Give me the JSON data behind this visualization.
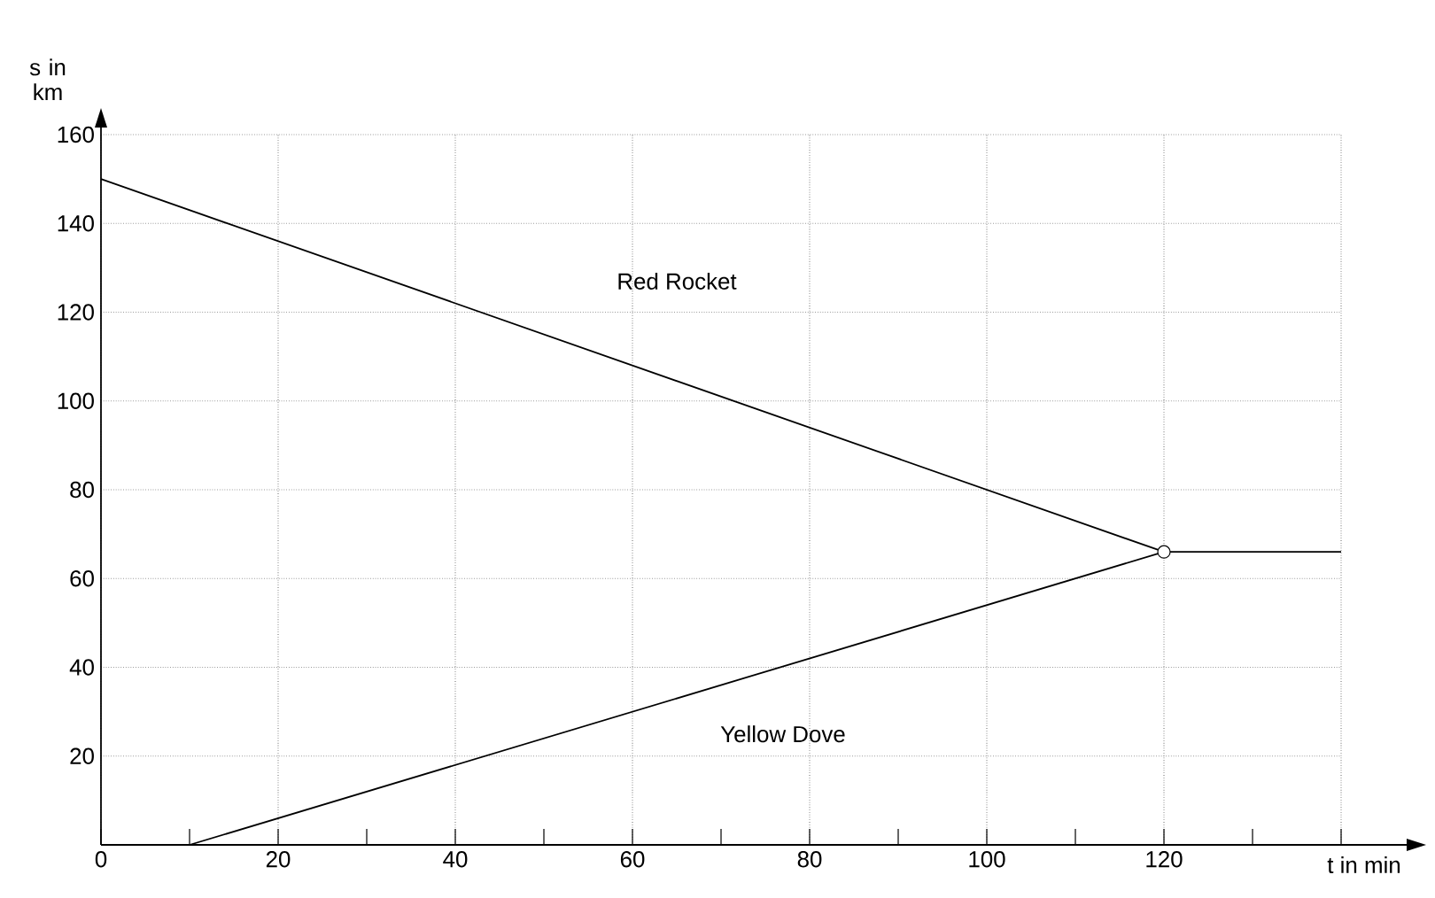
{
  "chart_data": {
    "type": "line",
    "xlabel": "t in min",
    "ylabel": "s in km",
    "xlim": [
      0,
      140
    ],
    "ylim": [
      0,
      160
    ],
    "xticks": [
      0,
      {
        "value": 10,
        "label": null
      },
      20,
      {
        "value": 30,
        "label": null
      },
      40,
      {
        "value": 50,
        "label": null
      },
      60,
      {
        "value": 70,
        "label": null
      },
      80,
      {
        "value": 90,
        "label": null
      },
      100,
      {
        "value": 110,
        "label": null
      },
      120,
      {
        "value": 130,
        "label": null
      },
      {
        "value": 140,
        "label": null
      }
    ],
    "yticks": [
      20,
      40,
      60,
      80,
      100,
      120,
      140,
      160
    ],
    "grid": true,
    "legend": false,
    "series": [
      {
        "name": "Red Rocket",
        "color": "#000000",
        "x": [
          0,
          120,
          140
        ],
        "values": [
          150,
          66,
          66
        ]
      },
      {
        "name": "Yellow Dove",
        "color": "#000000",
        "x": [
          10,
          120
        ],
        "values": [
          0,
          66
        ]
      },
      {
        "type": "scatter",
        "marker": "circle",
        "color": "#000000",
        "x": [
          120
        ],
        "values": [
          66
        ]
      }
    ]
  }
}
